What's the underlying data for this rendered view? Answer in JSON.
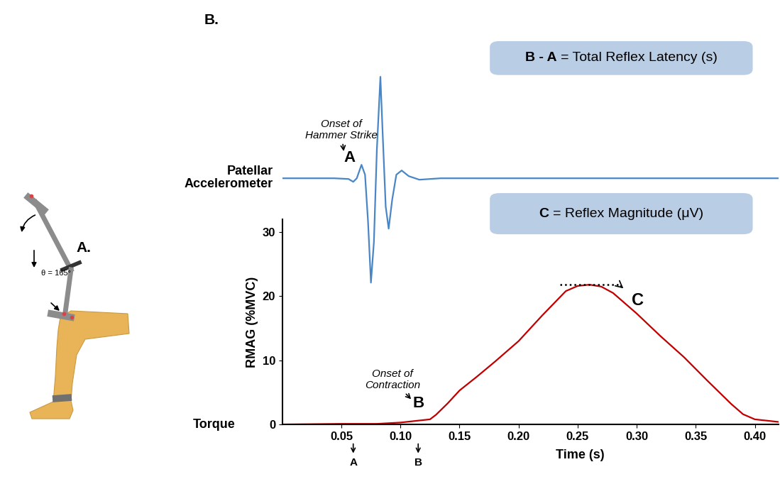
{
  "chart_data": {
    "type": "line",
    "x_label": "Time (s)",
    "y_label": "RMAG (%MVC)",
    "y_note": "Torque",
    "color": "#c00000",
    "x": [
      0,
      0.05,
      0.08,
      0.1,
      0.115,
      0.125,
      0.13,
      0.14,
      0.15,
      0.165,
      0.18,
      0.2,
      0.22,
      0.24,
      0.25,
      0.26,
      0.27,
      0.28,
      0.3,
      0.32,
      0.34,
      0.36,
      0.38,
      0.39,
      0.4,
      0.41,
      0.42
    ],
    "values": [
      0,
      0.1,
      0.1,
      0.3,
      0.6,
      0.8,
      1.5,
      3.3,
      5.3,
      7.5,
      9.8,
      13,
      17,
      20.8,
      21.6,
      21.8,
      21.5,
      20.5,
      17.3,
      13.8,
      10.5,
      6.8,
      3.2,
      1.6,
      0.8,
      0.6,
      0.4
    ],
    "xlim": [
      0,
      0.42
    ],
    "ylim": [
      0,
      32
    ],
    "xticks": [
      0.05,
      {
        "value": 0.1,
        "label": "0.10"
      },
      0.15,
      {
        "value": 0.2,
        "label": "0.20"
      },
      0.25,
      {
        "value": 0.3,
        "label": "0.30"
      },
      0.35,
      {
        "value": 0.4,
        "label": "0.40"
      }
    ],
    "yticks": [
      0,
      10,
      20,
      30
    ],
    "onset": {
      "label": "B",
      "note": "Onset of\nContraction",
      "x": 0.115,
      "y": 0.6
    },
    "peak": {
      "label": "C",
      "value": 21.8,
      "x": [
        0.235,
        0.285
      ]
    },
    "time_markers": [
      {
        "label": "A",
        "x": 0.06
      },
      {
        "label": "B",
        "x": 0.115
      }
    ]
  },
  "accelerometer": {
    "label": "Patellar\nAccelerometer",
    "color": "#4a86c5",
    "x": [
      0,
      0.044,
      0.056,
      0.06,
      0.063,
      0.067,
      0.07,
      0.0725,
      0.075,
      0.0775,
      0.08,
      0.083,
      0.085,
      0.0875,
      0.09,
      0.093,
      0.0965,
      0.101,
      0.107,
      0.116,
      0.134,
      0.42
    ],
    "values": [
      0,
      0,
      -0.01,
      -0.05,
      0,
      0.19,
      0.05,
      -0.6,
      -1.47,
      -0.9,
      0.4,
      1.43,
      0.6,
      -0.4,
      -0.71,
      -0.3,
      0.05,
      0.11,
      0.03,
      -0.02,
      0,
      0
    ],
    "ylim": [
      -1.6,
      1.7
    ],
    "onset": {
      "label": "A",
      "note": "Onset of\nHammer Strike",
      "x": 0.063,
      "y": 0
    }
  },
  "boxes": [
    {
      "bold": "B - A",
      "text": "= Total Reflex Latency (s)"
    },
    {
      "bold": "C",
      "text": "= Reflex Magnitude (μV)"
    }
  ],
  "panels": {
    "A": {
      "label": "A.",
      "angle_label": "θ = 165°"
    },
    "B": {
      "label": "B."
    }
  }
}
